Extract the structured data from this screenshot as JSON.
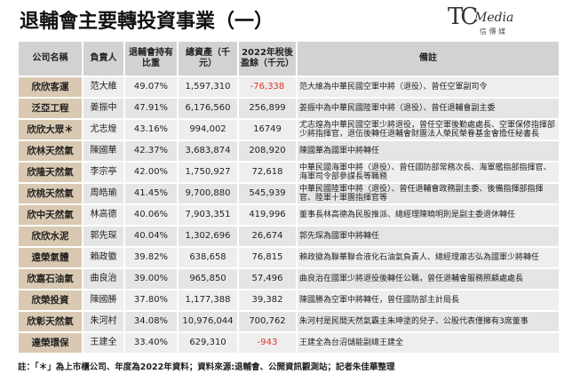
{
  "header": {
    "title": "退輔會主要轉投資事業（一）"
  },
  "logo": {
    "mark": "TC",
    "name": "Media",
    "subtitle": "信 傳 媒"
  },
  "table": {
    "columns": [
      "公司名稱",
      "負責人",
      "退輔會持有比重",
      "總資產（千元）",
      "2022年稅後盈餘（千元）",
      "備註"
    ],
    "rows": [
      [
        "欣欣客運",
        "范大維",
        "49.07%",
        "1,597,310",
        "-76,338",
        "范大維為中華民國空軍中將（退役）、曾任空軍副司令"
      ],
      [
        "泛亞工程",
        "姜振中",
        "47.91%",
        "6,176,560",
        "256,899",
        "姜振中為中華民國陸軍中將（退役）、曾任退輔會副主委"
      ],
      [
        "欣欣大眾＊",
        "尤志煌",
        "43.16%",
        "994,002",
        "16749",
        "尤志煌為中華民國空軍少將退役，曾任空軍後勤處處長、空軍保修指揮部少將指揮官，退伍後轉任退輔會財團法人榮民榮眷基金會擔任秘書長"
      ],
      [
        "欣林天然氣",
        "陳國華",
        "42.37%",
        "3,683,874",
        "208,920",
        "陳國華為國軍中將轉任"
      ],
      [
        "欣隆天然氣",
        "李宗亭",
        "42.00%",
        "1,750,927",
        "72,618",
        "中華民國海軍中將（退役）、曾任國防部常務次長、海軍艦指部指揮官、海軍司令部參謀長等職務"
      ],
      [
        "欣桃天然氣",
        "周皓瑜",
        "41.45%",
        "9,700,880",
        "545,939",
        "中華民國陸軍中將（退役）、曾任退輔會政務副主委、後備指揮部指揮官、陸軍十軍團指揮官等"
      ],
      [
        "欣中天然氣",
        "林高德",
        "40.06%",
        "7,903,351",
        "419,996",
        "董事長林高德為民股推派、總經理陳曉明則是副主委退休轉任"
      ],
      [
        "欣欣水泥",
        "郭先琛",
        "40.04%",
        "1,302,696",
        "26,674",
        "郭先琛為國軍中將轉任"
      ],
      [
        "遠榮氣體",
        "賴政徽",
        "39.82%",
        "638,658",
        "76,815",
        "賴政徽為聯華聯合液化石油氣負責人、總經理蕭志弘為國軍少將轉任"
      ],
      [
        "欣嘉石油氣",
        "曲良治",
        "39.00%",
        "965,850",
        "57,496",
        "曲良治在國軍少將退役後轉任公職，曾任退輔會服務照顧處處長"
      ],
      [
        "欣榮投資",
        "陳國勝",
        "37.80%",
        "1,177,388",
        "39,382",
        "陳國勝為空軍中將轉任，曾任國防部主計局長"
      ],
      [
        "欣彰天然氣",
        "朱河村",
        "34.08%",
        "10,976,044",
        "700,762",
        "朱河村是民間天然氣霸主朱坤塗的兒子、公股代表僅擁有3席董事"
      ],
      [
        "達榮環保",
        "王建全",
        "33.40%",
        "629,310",
        "-943",
        "王建全為台沼儲能副總王建全"
      ]
    ]
  },
  "footnote": "註：「＊」為上市櫃公司、年度為2022年資料；資料來源:退輔會、公開資訊觀測站；記者朱佳華整理"
}
